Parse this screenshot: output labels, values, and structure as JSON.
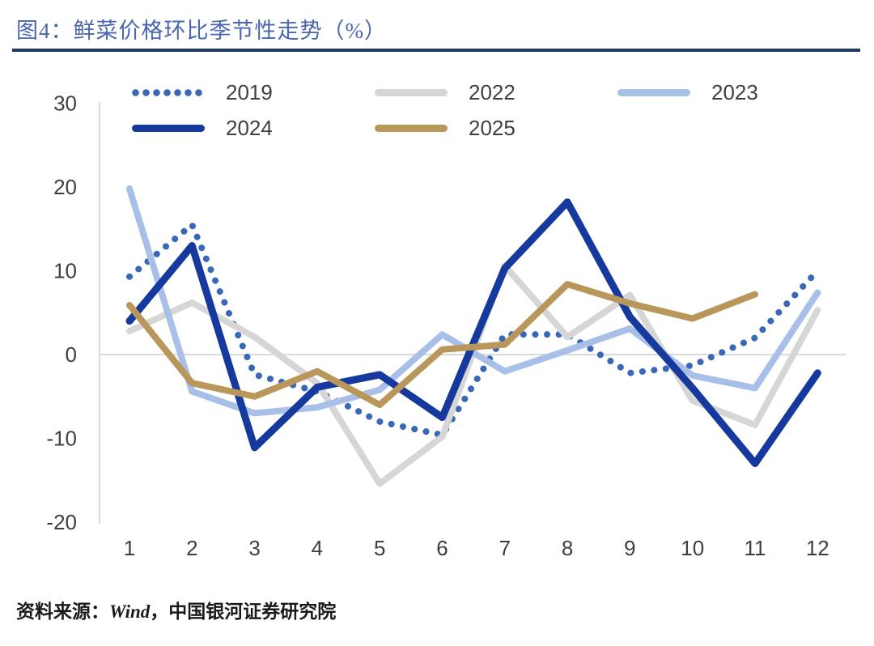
{
  "header": {
    "title": "图4：鲜菜价格环比季节性走势（%）"
  },
  "source": {
    "prefix": "资料来源：",
    "wind": "Wind",
    "rest": "，中国银河证券研究院"
  },
  "chart_data": {
    "type": "line",
    "title": "鲜菜价格环比季节性走势（%）",
    "categories": [
      1,
      2,
      3,
      4,
      5,
      6,
      7,
      8,
      9,
      10,
      11,
      12
    ],
    "y_ticks": [
      30,
      20,
      10,
      0,
      -10,
      -20
    ],
    "ylim": [
      -20,
      30
    ],
    "grid": "zero-line-only",
    "legend_position": "top",
    "series": [
      {
        "name": "2019",
        "color": "#3a68b8",
        "style": "dotted",
        "values": [
          9.3,
          15.5,
          -2.4,
          -4.4,
          -8.0,
          -9.6,
          2.4,
          2.4,
          -2.2,
          -1.3,
          2.0,
          10.0
        ]
      },
      {
        "name": "2022",
        "color": "#d6d6d6",
        "style": "solid",
        "values": [
          2.8,
          6.2,
          2.1,
          -3.4,
          -15.4,
          -9.8,
          10.6,
          2.1,
          7.1,
          -5.5,
          -8.4,
          5.3
        ]
      },
      {
        "name": "2023",
        "color": "#a8c0e8",
        "style": "solid",
        "values": [
          19.8,
          -4.4,
          -7.0,
          -6.3,
          -4.2,
          2.4,
          -2.0,
          0.5,
          3.1,
          -2.5,
          -4.0,
          7.4
        ]
      },
      {
        "name": "2024",
        "color": "#16399e",
        "style": "solid",
        "values": [
          4.0,
          13.0,
          -11.1,
          -3.9,
          -2.4,
          -7.5,
          10.3,
          18.2,
          4.5,
          -4.0,
          -13.0,
          -2.2
        ]
      },
      {
        "name": "2025",
        "color": "#b9975b",
        "style": "solid",
        "values": [
          5.9,
          -3.4,
          -5.0,
          -2.0,
          -6.0,
          0.6,
          1.2,
          8.4,
          6.1,
          4.3,
          7.2
        ]
      }
    ]
  }
}
